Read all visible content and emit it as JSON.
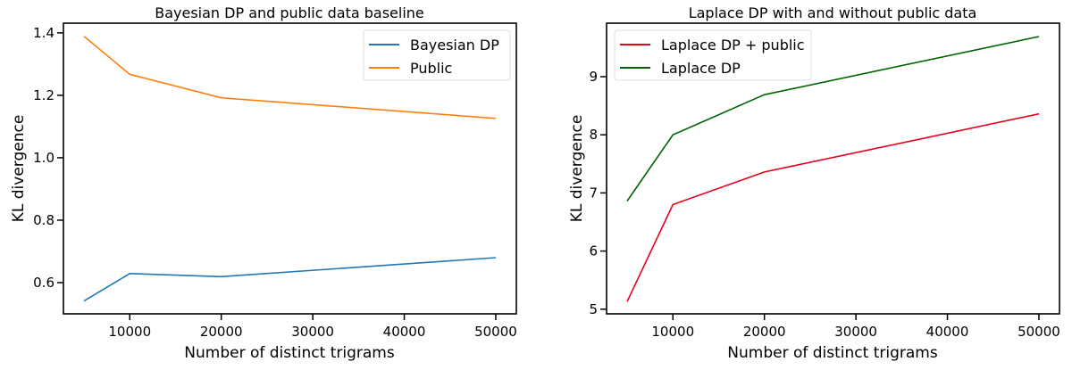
{
  "chart_data": [
    {
      "type": "line",
      "title": "Bayesian DP and public data baseline",
      "xlabel": "Number of distinct trigrams",
      "ylabel": "KL divergence",
      "x": [
        5000,
        10000,
        20000,
        50000
      ],
      "xlim": [
        2750,
        52250
      ],
      "ylim": [
        0.5,
        1.431
      ],
      "xticks": [
        10000,
        20000,
        30000,
        40000,
        50000
      ],
      "yticks": [
        0.6,
        0.8,
        1.0,
        1.2,
        1.4
      ],
      "ytick_labels": [
        "0.6",
        "0.8",
        "1.0",
        "1.2",
        "1.4"
      ],
      "legend": "top-right",
      "grid": false,
      "series": [
        {
          "name": "Bayesian DP",
          "color": "#1f77b4",
          "values": [
            0.541,
            0.629,
            0.619,
            0.68
          ]
        },
        {
          "name": "Public",
          "color": "#ff7f0e",
          "values": [
            1.389,
            1.267,
            1.192,
            1.126
          ]
        }
      ]
    },
    {
      "type": "line",
      "title": "Laplace DP with and without public data",
      "xlabel": "Number of distinct trigrams",
      "ylabel": "KL divergence",
      "x": [
        5000,
        10000,
        20000,
        50000
      ],
      "xlim": [
        2750,
        52250
      ],
      "ylim": [
        4.92,
        9.92
      ],
      "xticks": [
        10000,
        20000,
        30000,
        40000,
        50000
      ],
      "yticks": [
        5,
        6,
        7,
        8,
        9
      ],
      "ytick_labels": [
        "5",
        "6",
        "7",
        "8",
        "9"
      ],
      "legend": "top-left",
      "grid": false,
      "series": [
        {
          "name": "Laplace DP + public",
          "color": "#e6001a",
          "values": [
            5.13,
            6.8,
            7.36,
            8.36
          ]
        },
        {
          "name": "Laplace DP",
          "color": "#006400",
          "values": [
            6.86,
            8.0,
            8.69,
            9.69
          ]
        }
      ]
    }
  ]
}
